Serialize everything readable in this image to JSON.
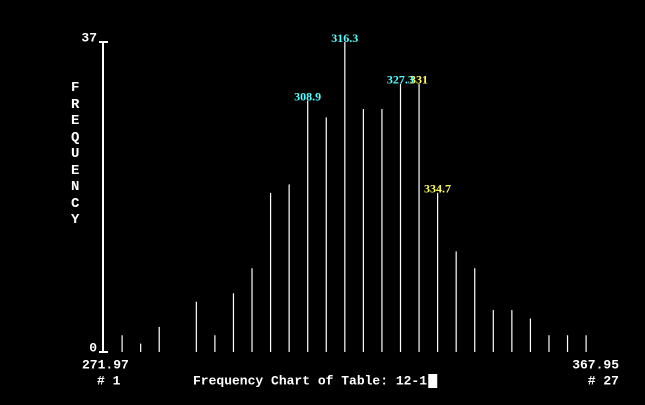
{
  "chart_data": {
    "type": "bar",
    "title": "Frequency Chart of Table: 12-1",
    "y_axis_label": "FREQUENCY",
    "categories": [
      null,
      null,
      null,
      null,
      null,
      null,
      null,
      null,
      null,
      null,
      null,
      null,
      null,
      null,
      null,
      null,
      null,
      null,
      null,
      null,
      null,
      null,
      null,
      null,
      null,
      null
    ],
    "values": [
      2,
      1,
      3,
      0,
      6,
      2,
      7,
      10,
      19,
      20,
      30,
      28,
      37,
      29,
      29,
      32,
      32,
      19,
      12,
      10,
      5,
      5,
      4,
      2,
      2,
      2
    ],
    "color": "#ffffff",
    "ylim": [
      0,
      37
    ],
    "yticks": [
      0,
      37
    ],
    "x_start_label": "271.97",
    "x_end_label": "367.95",
    "bin_start_label": "# 1",
    "bin_end_label": "# 27",
    "annotations": [
      {
        "text": "308.9",
        "index": 10,
        "color": "#55ffff"
      },
      {
        "text": "316.3",
        "index": 12,
        "color": "#55ffff"
      },
      {
        "text": "327.3",
        "index": 15,
        "color": "#55ffff"
      },
      {
        "text": "331",
        "index": 16,
        "color": "#ffff55"
      },
      {
        "text": "334.7",
        "index": 17,
        "color": "#ffff55"
      }
    ]
  }
}
